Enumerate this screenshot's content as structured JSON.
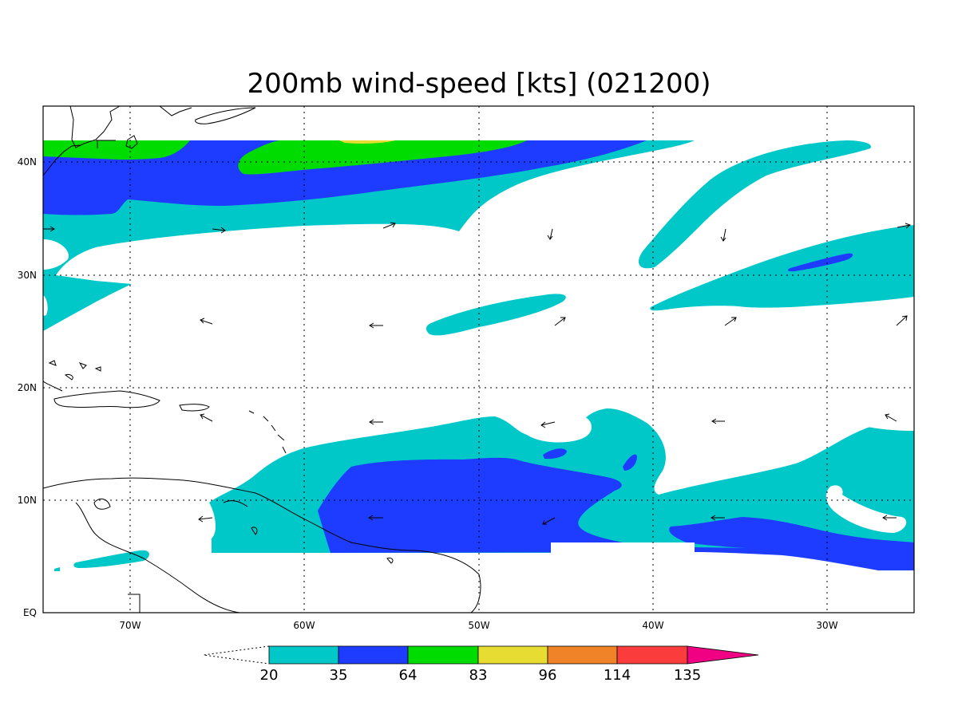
{
  "title": "200mb wind-speed [kts] (021200)",
  "axes": {
    "x_ticks": [
      "70W",
      "60W",
      "50W",
      "40W",
      "30W"
    ],
    "y_ticks": [
      "EQ",
      "10N",
      "20N",
      "30N",
      "40N"
    ]
  },
  "colorbar": {
    "levels": [
      "20",
      "35",
      "64",
      "83",
      "96",
      "114",
      "135"
    ],
    "colors": [
      "#00c8c8",
      "#1e3cff",
      "#00dc00",
      "#e6dc32",
      "#f08228",
      "#fa3c3c",
      "#f00082"
    ]
  },
  "map": {
    "lon_range": [
      -75,
      -25
    ],
    "lat_range": [
      0,
      45
    ],
    "wind_speed_shading": "cyan 20-35 kts, blue 35-64 kts, green 64-83 kts, yellow 83-96 kts"
  }
}
